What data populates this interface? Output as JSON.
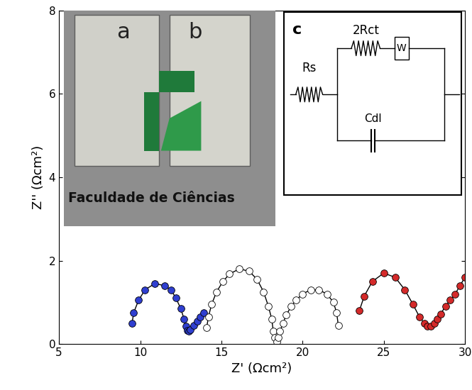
{
  "chart_data": {
    "type": "scatter",
    "x_label": "Z' (Ωcm²)",
    "y_label": "Z'' (Ωcm²)",
    "xlim": [
      5,
      30
    ],
    "xticks": [
      5,
      10,
      15,
      20,
      25,
      30
    ],
    "ylim": [
      0,
      8
    ],
    "yticks": [
      0,
      2,
      4,
      6,
      8
    ],
    "series": [
      {
        "color": "#2f3fd0",
        "marker": "o",
        "line_style": "solid",
        "x": [
          9.5,
          9.6,
          9.9,
          10.3,
          10.9,
          11.5,
          11.9,
          12.2,
          12.5,
          12.7,
          12.8,
          12.9,
          13.0,
          13.1,
          13.3,
          13.5,
          13.7,
          13.9
        ],
        "values": [
          0.5,
          0.75,
          1.05,
          1.3,
          1.45,
          1.4,
          1.3,
          1.1,
          0.85,
          0.6,
          0.42,
          0.32,
          0.3,
          0.35,
          0.45,
          0.55,
          0.65,
          0.75
        ]
      },
      {
        "color": "#ffffff",
        "marker": "o",
        "line_style": "solid",
        "x": [
          14.1,
          14.2,
          14.4,
          14.7,
          15.1,
          15.5,
          16.1,
          16.7,
          17.2,
          17.6,
          17.9,
          18.1,
          18.2,
          18.3,
          18.4,
          18.5,
          18.6,
          18.8,
          19.0,
          19.3,
          19.6,
          20.0,
          20.5,
          21.0,
          21.5,
          21.9,
          22.1,
          22.2
        ],
        "values": [
          0.4,
          0.65,
          0.95,
          1.25,
          1.5,
          1.68,
          1.8,
          1.75,
          1.55,
          1.25,
          0.9,
          0.6,
          0.3,
          0.15,
          0.05,
          0.15,
          0.3,
          0.5,
          0.7,
          0.9,
          1.05,
          1.2,
          1.3,
          1.3,
          1.2,
          1.0,
          0.75,
          0.45
        ]
      },
      {
        "color": "#d42a2a",
        "marker": "o",
        "line_style": "solid",
        "x": [
          23.5,
          23.8,
          24.3,
          25.0,
          25.7,
          26.3,
          26.8,
          27.2,
          27.5,
          27.7,
          27.9,
          28.1,
          28.3,
          28.5,
          28.8,
          29.1,
          29.4,
          29.7,
          30.0
        ],
        "values": [
          0.8,
          1.15,
          1.5,
          1.7,
          1.6,
          1.3,
          0.95,
          0.65,
          0.5,
          0.42,
          0.42,
          0.5,
          0.6,
          0.72,
          0.9,
          1.05,
          1.2,
          1.4,
          1.6
        ]
      }
    ],
    "inset_photo": {
      "labels": [
        "a",
        "b"
      ],
      "text": "Faculdade de Ciências"
    },
    "inset_circuit": {
      "label": "c",
      "resistor_series": "Rs",
      "resistor_ct": "2Rct",
      "warburg": "W",
      "capacitor": "Cdl"
    }
  }
}
